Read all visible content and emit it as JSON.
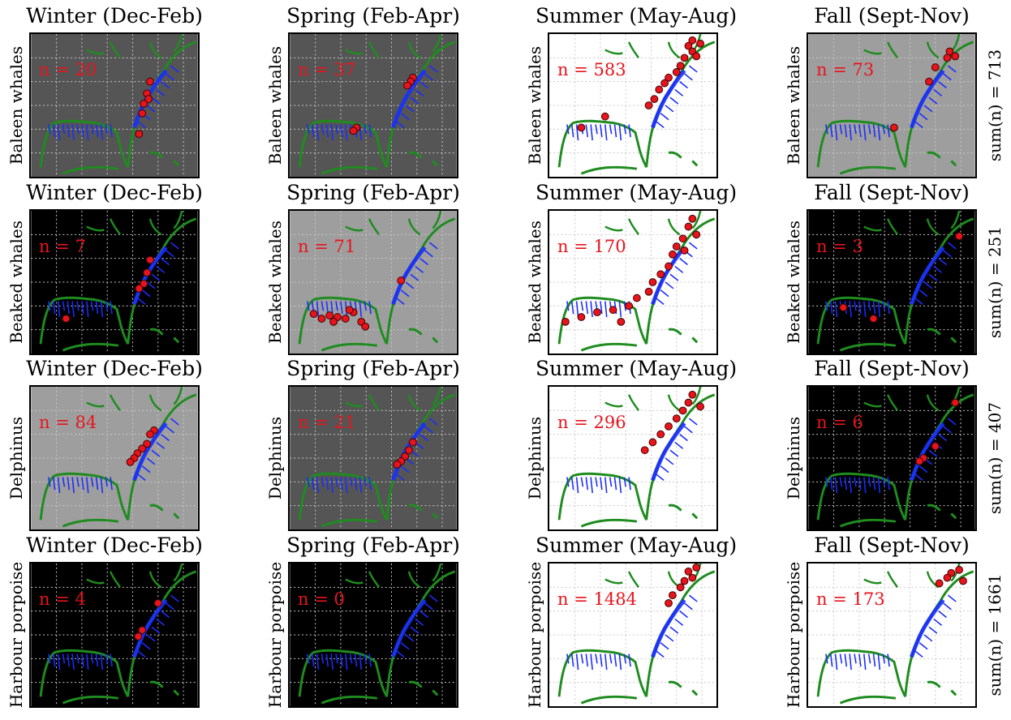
{
  "figure": {
    "columns": [
      "Winter (Dec-Feb)",
      "Spring (Feb-Apr)",
      "Summer (May-Aug)",
      "Fall (Sept-Nov)"
    ],
    "rows": [
      {
        "species": "Baleen whales",
        "sum_label": "sum(n) = 713",
        "panels": [
          {
            "n_label": "n = 20",
            "bg": "#555555"
          },
          {
            "n_label": "n = 37",
            "bg": "#555555"
          },
          {
            "n_label": "n = 583",
            "bg": "#ffffff"
          },
          {
            "n_label": "n = 73",
            "bg": "#9e9e9e"
          }
        ]
      },
      {
        "species": "Beaked whales",
        "sum_label": "sum(n) = 251",
        "panels": [
          {
            "n_label": "n = 7",
            "bg": "#000000"
          },
          {
            "n_label": "n = 71",
            "bg": "#9e9e9e"
          },
          {
            "n_label": "n = 170",
            "bg": "#ffffff"
          },
          {
            "n_label": "n = 3",
            "bg": "#000000"
          }
        ]
      },
      {
        "species": "Delphinus",
        "sum_label": "sum(n) = 407",
        "panels": [
          {
            "n_label": "n = 84",
            "bg": "#9e9e9e"
          },
          {
            "n_label": "n = 21",
            "bg": "#555555"
          },
          {
            "n_label": "n = 296",
            "bg": "#ffffff"
          },
          {
            "n_label": "n = 6",
            "bg": "#000000"
          }
        ]
      },
      {
        "species": "Harbour porpoise",
        "sum_label": "sum(n) = 1661",
        "panels": [
          {
            "n_label": "n = 4",
            "bg": "#000000"
          },
          {
            "n_label": "n = 0",
            "bg": "#000000"
          },
          {
            "n_label": "n = 1484",
            "bg": "#ffffff"
          },
          {
            "n_label": "n = 173",
            "bg": "#ffffff"
          }
        ]
      }
    ],
    "colors": {
      "coast": "#1e8c1e",
      "effort": "#1a2cff",
      "sighting": "#e8141c",
      "n_text": "#e8141c",
      "grid": "#c8c8c8"
    }
  }
}
